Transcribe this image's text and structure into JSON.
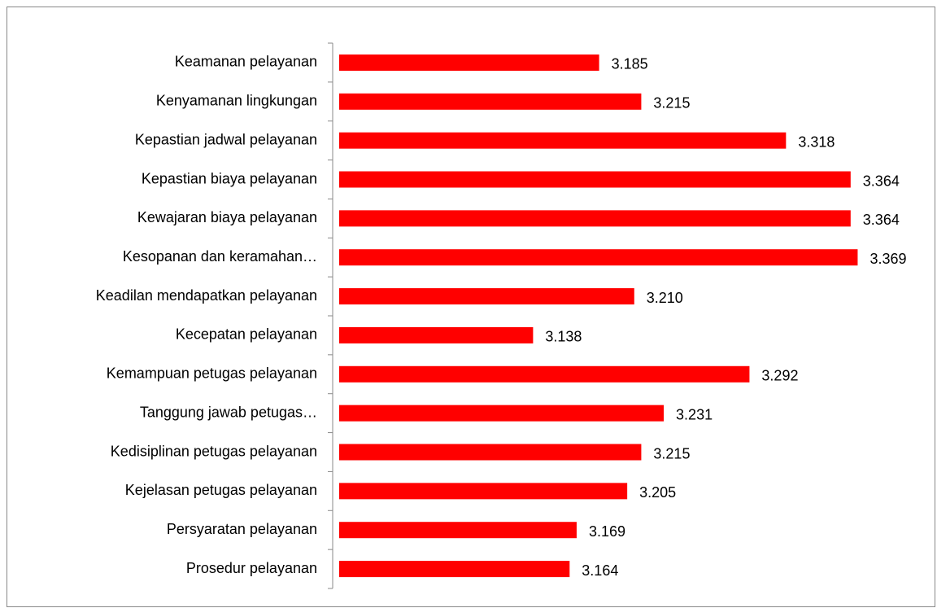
{
  "chart_data": {
    "type": "bar",
    "orientation": "horizontal",
    "categories": [
      "Keamanan pelayanan",
      "Kenyamanan lingkungan",
      "Kepastian jadwal pelayanan",
      "Kepastian biaya pelayanan",
      "Kewajaran biaya pelayanan",
      "Kesopanan dan keramahan…",
      "Keadilan mendapatkan pelayanan",
      "Kecepatan pelayanan",
      "Kemampuan petugas pelayanan",
      "Tanggung jawab petugas…",
      "Kedisiplinan petugas pelayanan",
      "Kejelasan petugas pelayanan",
      "Persyaratan pelayanan",
      "Prosedur pelayanan"
    ],
    "values": [
      3.185,
      3.215,
      3.318,
      3.364,
      3.364,
      3.369,
      3.21,
      3.138,
      3.292,
      3.231,
      3.215,
      3.205,
      3.169,
      3.164
    ],
    "value_labels": [
      "3.185",
      "3.215",
      "3.318",
      "3.364",
      "3.364",
      "3.369",
      "3.210",
      "3.138",
      "3.292",
      "3.231",
      "3.215",
      "3.205",
      "3.169",
      "3.164"
    ],
    "color": "#ff0000",
    "xlim": [
      3,
      3.4
    ]
  }
}
